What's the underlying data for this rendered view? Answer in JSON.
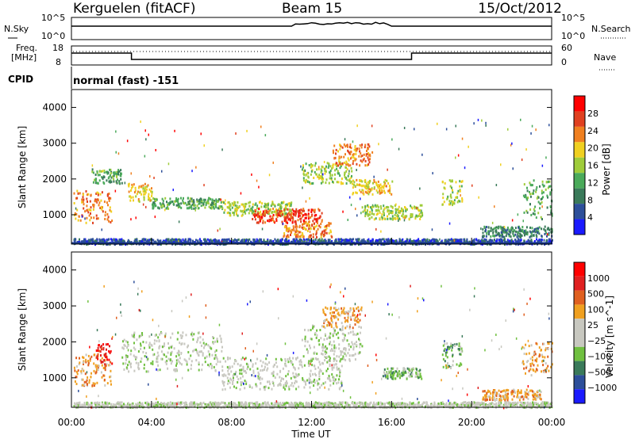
{
  "header": {
    "station": "Kerguelen (fitACF)",
    "beam": "Beam 15",
    "date": "15/Oct/2012"
  },
  "top_panels": {
    "nsky_label": "N.Sky",
    "nsearch_label": "N.Search",
    "nsky_ticks": [
      "10^5",
      "10^0"
    ],
    "freq_label_1": "Freq.",
    "freq_label_2": "[MHz]",
    "freq_ticks": [
      "18",
      "8"
    ],
    "nave_ticks": [
      "60",
      "0"
    ],
    "nave_label": "Nave",
    "cpid_label": "CPID",
    "cpid_value": "normal (fast) -151"
  },
  "colors": {
    "power_scale": [
      "#1a1aff",
      "#2d4f9a",
      "#3a7a5a",
      "#4aaa5a",
      "#9fcc3a",
      "#f0d020",
      "#f08020",
      "#e04020",
      "#ff0000"
    ],
    "velocity_scale": [
      "#1a1aff",
      "#2d4f9a",
      "#3a7a5a",
      "#70c040",
      "#c8c8c0",
      "#c8c8c0",
      "#f0a020",
      "#e06020",
      "#e02020",
      "#ff0000"
    ]
  },
  "chart_data": [
    {
      "type": "heatmap",
      "name": "power",
      "ylabel": "Slant Range [km]",
      "ylim": [
        180,
        4500
      ],
      "yticks": [
        "4000",
        "3000",
        "2000",
        "1000"
      ],
      "colorbar_label": "Power [dB]",
      "colorbar_ticks": [
        "28",
        "24",
        "20",
        "16",
        "12",
        "8",
        "4"
      ],
      "patches": [
        {
          "t0": 0.1,
          "t1": 2.0,
          "r0": 800,
          "r1": 1700,
          "c": 6
        },
        {
          "t0": 1.0,
          "t1": 2.5,
          "r0": 1900,
          "r1": 2300,
          "c": 3
        },
        {
          "t0": 2.8,
          "t1": 4.0,
          "r0": 1400,
          "r1": 1900,
          "c": 5
        },
        {
          "t0": 4.0,
          "t1": 7.5,
          "r0": 1200,
          "r1": 1500,
          "c": 3
        },
        {
          "t0": 7.5,
          "t1": 11.0,
          "r0": 1000,
          "r1": 1400,
          "c": 4
        },
        {
          "t0": 9.0,
          "t1": 12.5,
          "r0": 800,
          "r1": 1200,
          "c": 7
        },
        {
          "t0": 10.5,
          "t1": 13.0,
          "r0": 400,
          "r1": 800,
          "c": 6
        },
        {
          "t0": 11.5,
          "t1": 14.0,
          "r0": 1900,
          "r1": 2500,
          "c": 4
        },
        {
          "t0": 13.0,
          "t1": 15.0,
          "r0": 2400,
          "r1": 3000,
          "c": 6
        },
        {
          "t0": 14.0,
          "t1": 16.0,
          "r0": 1600,
          "r1": 2000,
          "c": 5
        },
        {
          "t0": 14.5,
          "t1": 17.5,
          "r0": 900,
          "r1": 1300,
          "c": 4
        },
        {
          "t0": 18.5,
          "t1": 19.5,
          "r0": 1300,
          "r1": 2000,
          "c": 4
        },
        {
          "t0": 20.5,
          "t1": 24.0,
          "r0": 400,
          "r1": 700,
          "c": 2
        },
        {
          "t0": 22.5,
          "t1": 24.0,
          "r0": 900,
          "r1": 2000,
          "c": 3
        },
        {
          "t0": 0.1,
          "t1": 24.0,
          "r0": 200,
          "r1": 350,
          "c": 1
        }
      ]
    },
    {
      "type": "heatmap",
      "name": "velocity",
      "ylabel": "Slant Range [km]",
      "ylim": [
        180,
        4500
      ],
      "yticks": [
        "4000",
        "3000",
        "2000",
        "1000"
      ],
      "colorbar_label": "Velocity [m s^-1]",
      "colorbar_ticks": [
        "1000",
        "500",
        "100",
        "25",
        "−25",
        "−100",
        "−500",
        "−1000"
      ],
      "patches": [
        {
          "t0": 0.1,
          "t1": 2.0,
          "r0": 800,
          "r1": 1700,
          "c": 6
        },
        {
          "t0": 1.2,
          "t1": 2.0,
          "r0": 1400,
          "r1": 2000,
          "c": 8
        },
        {
          "t0": 2.5,
          "t1": 7.5,
          "r0": 1200,
          "r1": 2300,
          "c": 4
        },
        {
          "t0": 7.5,
          "t1": 13.5,
          "r0": 700,
          "r1": 1600,
          "c": 4
        },
        {
          "t0": 11.5,
          "t1": 14.5,
          "r0": 1500,
          "r1": 2500,
          "c": 4
        },
        {
          "t0": 12.5,
          "t1": 14.5,
          "r0": 2400,
          "r1": 3000,
          "c": 6
        },
        {
          "t0": 15.5,
          "t1": 17.5,
          "r0": 1000,
          "r1": 1300,
          "c": 3
        },
        {
          "t0": 18.5,
          "t1": 19.5,
          "r0": 1300,
          "r1": 2000,
          "c": 3
        },
        {
          "t0": 20.5,
          "t1": 23.5,
          "r0": 400,
          "r1": 700,
          "c": 6
        },
        {
          "t0": 22.5,
          "t1": 24.0,
          "r0": 1100,
          "r1": 2000,
          "c": 6
        },
        {
          "t0": 0.1,
          "t1": 24.0,
          "r0": 200,
          "r1": 350,
          "c": 4
        }
      ],
      "xlabel": "Time UT",
      "xticks": [
        "00:00",
        "04:00",
        "08:00",
        "12:00",
        "16:00",
        "20:00",
        "00:00"
      ],
      "xlim": [
        0,
        24
      ]
    }
  ]
}
